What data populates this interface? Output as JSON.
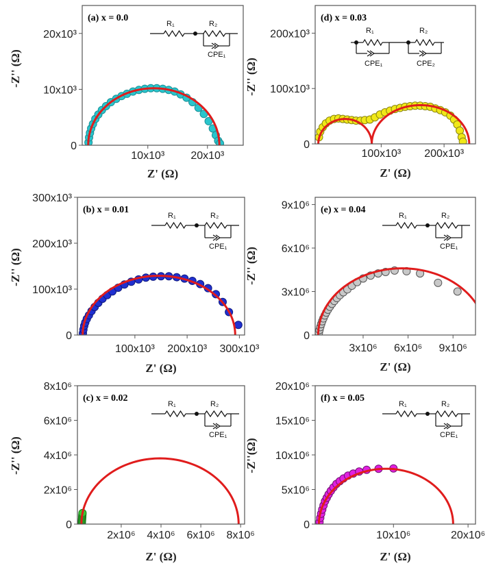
{
  "chart_data": [
    {
      "id": "a",
      "type": "scatter",
      "panel_label": "(a) x = 0.0",
      "xlabel": "Z' (Ω)",
      "ylabel": "-Z'' (Ω)",
      "xlim": [
        -1000,
        26000
      ],
      "ylim": [
        0,
        25000
      ],
      "xticks": [
        {
          "v": 10000,
          "label": "10x10³"
        },
        {
          "v": 20000,
          "label": "20x10³"
        }
      ],
      "yticks": [
        {
          "v": 0,
          "label": "0"
        },
        {
          "v": 10000,
          "label": "10x10³"
        },
        {
          "v": 20000,
          "label": "20x10³"
        }
      ],
      "circuit": {
        "r1": "R₁",
        "r2": "R₂",
        "cpe": [
          "CPE₁"
        ]
      },
      "series": [
        {
          "color": "#29c5cc",
          "edge": "#1a8f96",
          "fit_color": "#e01c1c",
          "arcs": [
            {
              "x0": 0,
              "x1": 22000,
              "h": 10200
            }
          ],
          "points": [
            [
              50,
              500
            ],
            [
              150,
              1400
            ],
            [
              300,
              2200
            ],
            [
              500,
              3000
            ],
            [
              800,
              3800
            ],
            [
              1200,
              4700
            ],
            [
              1700,
              5500
            ],
            [
              2300,
              6300
            ],
            [
              3000,
              7000
            ],
            [
              3800,
              7700
            ],
            [
              4700,
              8300
            ],
            [
              5600,
              8800
            ],
            [
              6500,
              9200
            ],
            [
              7500,
              9600
            ],
            [
              8500,
              9900
            ],
            [
              9500,
              10100
            ],
            [
              10500,
              10200
            ],
            [
              11500,
              10200
            ],
            [
              12500,
              10100
            ],
            [
              13500,
              9900
            ],
            [
              14500,
              9600
            ],
            [
              15500,
              9100
            ],
            [
              16500,
              8500
            ],
            [
              17500,
              7700
            ],
            [
              18500,
              6700
            ],
            [
              19400,
              5600
            ],
            [
              20200,
              4300
            ],
            [
              20900,
              3000
            ],
            [
              21400,
              1800
            ],
            [
              21800,
              800
            ],
            [
              22100,
              300
            ]
          ]
        }
      ]
    },
    {
      "id": "b",
      "type": "scatter",
      "panel_label": "(b) x = 0.01",
      "xlabel": "Z' (Ω)",
      "ylabel": "-Z'' (Ω)",
      "xlim": [
        -10000,
        310000
      ],
      "ylim": [
        0,
        300000
      ],
      "xticks": [
        {
          "v": 100000,
          "label": "100x10³"
        },
        {
          "v": 200000,
          "label": "200x10³"
        },
        {
          "v": 300000,
          "label": "300x10³"
        }
      ],
      "yticks": [
        {
          "v": 0,
          "label": "0"
        },
        {
          "v": 100000,
          "label": "100x10³"
        },
        {
          "v": 200000,
          "label": "200x10³"
        },
        {
          "v": 300000,
          "label": "300x10³"
        }
      ],
      "circuit": {
        "r1": "R₁",
        "r2": "R₂",
        "cpe": [
          "CPE₁"
        ]
      },
      "series": [
        {
          "color": "#2030d0",
          "edge": "#101a80",
          "fit_color": "#e01c1c",
          "arcs": [
            {
              "x0": 0,
              "x1": 292000,
              "h": 129000
            }
          ],
          "points": [
            [
              500,
              4000
            ],
            [
              1500,
              12000
            ],
            [
              3000,
              20000
            ],
            [
              5000,
              27000
            ],
            [
              8000,
              35000
            ],
            [
              12000,
              43000
            ],
            [
              17000,
              52000
            ],
            [
              23000,
              61000
            ],
            [
              30000,
              70000
            ],
            [
              38000,
              79000
            ],
            [
              47000,
              87000
            ],
            [
              57000,
              95000
            ],
            [
              68000,
              103000
            ],
            [
              80000,
              110000
            ],
            [
              93000,
              116000
            ],
            [
              107000,
              121000
            ],
            [
              121000,
              125000
            ],
            [
              135000,
              127000
            ],
            [
              150000,
              128000
            ],
            [
              165000,
              128000
            ],
            [
              180000,
              126000
            ],
            [
              195000,
              123000
            ],
            [
              210000,
              118000
            ],
            [
              225000,
              111000
            ],
            [
              240000,
              102000
            ],
            [
              255000,
              89000
            ],
            [
              268000,
              72000
            ],
            [
              280000,
              50000
            ],
            [
              298000,
              22000
            ]
          ]
        }
      ]
    },
    {
      "id": "c",
      "type": "scatter",
      "panel_label": "(c) x = 0.02",
      "xlabel": "Z' (Ω)",
      "ylabel": "-Z'' (Ω)",
      "xlim": [
        -200000,
        8200000
      ],
      "ylim": [
        0,
        8000000
      ],
      "xticks": [
        {
          "v": 2000000,
          "label": "2x10⁶"
        },
        {
          "v": 4000000,
          "label": "4x10⁶"
        },
        {
          "v": 6000000,
          "label": "6x10⁶"
        },
        {
          "v": 8000000,
          "label": "8x10⁶"
        }
      ],
      "yticks": [
        {
          "v": 0,
          "label": "0"
        },
        {
          "v": 2000000,
          "label": "2x10⁶"
        },
        {
          "v": 4000000,
          "label": "4x10⁶"
        },
        {
          "v": 6000000,
          "label": "6x10⁶"
        },
        {
          "v": 8000000,
          "label": "8x10⁶"
        }
      ],
      "circuit": {
        "r1": "R₁",
        "r2": "R₂",
        "cpe": [
          "CPE₁"
        ]
      },
      "series": [
        {
          "color": "#36c836",
          "edge": "#1a7a1a",
          "fit_color": "#e01c1c",
          "arcs": [
            {
              "x0": 0,
              "x1": 7900000,
              "h": 3800000
            }
          ],
          "points": [
            [
              20000,
              80000
            ],
            [
              25000,
              160000
            ],
            [
              30000,
              240000
            ],
            [
              35000,
              320000
            ],
            [
              40000,
              400000
            ],
            [
              45000,
              480000
            ],
            [
              50000,
              560000
            ],
            [
              55000,
              640000
            ]
          ]
        }
      ]
    },
    {
      "id": "d",
      "type": "scatter",
      "panel_label": "(d) x = 0.03",
      "xlabel": "Z' (Ω)",
      "ylabel": "-Z'' (Ω)",
      "xlim": [
        -5000,
        250000
      ],
      "ylim": [
        0,
        250000
      ],
      "xticks": [
        {
          "v": 100000,
          "label": "100x10³"
        },
        {
          "v": 200000,
          "label": "200x10³"
        }
      ],
      "yticks": [
        {
          "v": 0,
          "label": "0"
        },
        {
          "v": 100000,
          "label": "100x10³"
        },
        {
          "v": 200000,
          "label": "200x10³"
        }
      ],
      "circuit": {
        "r1": "R₁",
        "r2": "R₂",
        "cpe": [
          "CPE₁",
          "CPE₂"
        ]
      },
      "series": [
        {
          "color": "#f0e818",
          "edge": "#8a8410",
          "fit_color": "#e01c1c",
          "arcs": [
            {
              "x0": 0,
              "x1": 85000,
              "h": 45000
            },
            {
              "x0": 85000,
              "x1": 240000,
              "h": 70000
            }
          ],
          "points": [
            [
              1000,
              12000
            ],
            [
              3000,
              22000
            ],
            [
              7000,
              30000
            ],
            [
              12000,
              37000
            ],
            [
              18000,
              42000
            ],
            [
              25000,
              45000
            ],
            [
              32000,
              46000
            ],
            [
              39000,
              45000
            ],
            [
              46000,
              44000
            ],
            [
              53000,
              43000
            ],
            [
              60000,
              42000
            ],
            [
              67000,
              42000
            ],
            [
              74000,
              43000
            ],
            [
              82000,
              44000
            ],
            [
              90000,
              48000
            ],
            [
              98000,
              53000
            ],
            [
              106000,
              57000
            ],
            [
              114000,
              60000
            ],
            [
              122000,
              63000
            ],
            [
              130000,
              65000
            ],
            [
              138000,
              67000
            ],
            [
              146000,
              68000
            ],
            [
              154000,
              69000
            ],
            [
              162000,
              69000
            ],
            [
              170000,
              68000
            ],
            [
              178000,
              67000
            ],
            [
              186000,
              64000
            ],
            [
              194000,
              61000
            ],
            [
              202000,
              57000
            ],
            [
              210000,
              51000
            ],
            [
              216000,
              44000
            ],
            [
              221000,
              35000
            ],
            [
              225000,
              24000
            ],
            [
              228000,
              12000
            ],
            [
              230000,
              4000
            ]
          ]
        }
      ]
    },
    {
      "id": "e",
      "type": "scatter",
      "panel_label": "(e) x = 0.04",
      "xlabel": "Z' (Ω)",
      "ylabel": "-Z'' (Ω)",
      "xlim": [
        -200000,
        10500000
      ],
      "ylim": [
        0,
        9500000
      ],
      "xticks": [
        {
          "v": 3000000,
          "label": "3x10⁶"
        },
        {
          "v": 6000000,
          "label": "6x10⁶"
        },
        {
          "v": 9000000,
          "label": "9x10⁶"
        }
      ],
      "yticks": [
        {
          "v": 0,
          "label": "0"
        },
        {
          "v": 3000000,
          "label": "3x10⁶"
        },
        {
          "v": 6000000,
          "label": "6x10⁶"
        },
        {
          "v": 9000000,
          "label": "9x10⁶"
        }
      ],
      "circuit": {
        "r1": "R₁",
        "r2": "R₂",
        "cpe": [
          "CPE₁"
        ]
      },
      "series": [
        {
          "color": "#c8c8c8",
          "edge": "#555555",
          "fit_color": "#e01c1c",
          "arcs": [
            {
              "x0": 0,
              "x1": 11200000,
              "h": 4600000
            }
          ],
          "points": [
            [
              50000,
              150000
            ],
            [
              90000,
              350000
            ],
            [
              140000,
              550000
            ],
            [
              200000,
              750000
            ],
            [
              270000,
              950000
            ],
            [
              350000,
              1150000
            ],
            [
              440000,
              1350000
            ],
            [
              540000,
              1550000
            ],
            [
              650000,
              1750000
            ],
            [
              780000,
              1950000
            ],
            [
              920000,
              2150000
            ],
            [
              1080000,
              2350000
            ],
            [
              1250000,
              2550000
            ],
            [
              1450000,
              2750000
            ],
            [
              1680000,
              2950000
            ],
            [
              1950000,
              3150000
            ],
            [
              2250000,
              3400000
            ],
            [
              2600000,
              3650000
            ],
            [
              3000000,
              3900000
            ],
            [
              3500000,
              4100000
            ],
            [
              4000000,
              4250000
            ],
            [
              4500000,
              4350000
            ],
            [
              5100000,
              4450000
            ],
            [
              5900000,
              4400000
            ],
            [
              6800000,
              4250000
            ],
            [
              8000000,
              3600000
            ],
            [
              9300000,
              3000000
            ]
          ]
        }
      ]
    },
    {
      "id": "f",
      "type": "scatter",
      "panel_label": "(f) x = 0.05",
      "xlabel": "Z' (Ω)",
      "ylabel": "-Z''(Ω)",
      "xlim": [
        -500000,
        21000000
      ],
      "ylim": [
        0,
        20000000
      ],
      "xticks": [
        {
          "v": 10000000,
          "label": "10x10⁶"
        },
        {
          "v": 20000000,
          "label": "20x10⁶"
        }
      ],
      "yticks": [
        {
          "v": 0,
          "label": "0"
        },
        {
          "v": 5000000,
          "label": "5x10⁶"
        },
        {
          "v": 10000000,
          "label": "10x10⁶"
        },
        {
          "v": 15000000,
          "label": "15x10⁶"
        },
        {
          "v": 20000000,
          "label": "20x10⁶"
        }
      ],
      "circuit": {
        "r1": "R₁",
        "r2": "R₂",
        "cpe": [
          "CPE₁"
        ]
      },
      "series": [
        {
          "color": "#e020e0",
          "edge": "#701070",
          "fit_color": "#e01c1c",
          "arcs": [
            {
              "x0": 0,
              "x1": 18000000,
              "h": 8000000
            }
          ],
          "points": [
            [
              80000,
              300000
            ],
            [
              180000,
              900000
            ],
            [
              300000,
              1500000
            ],
            [
              450000,
              2100000
            ],
            [
              620000,
              2700000
            ],
            [
              820000,
              3300000
            ],
            [
              1050000,
              3800000
            ],
            [
              1300000,
              4300000
            ],
            [
              1600000,
              4800000
            ],
            [
              1950000,
              5300000
            ],
            [
              2350000,
              5800000
            ],
            [
              2800000,
              6200000
            ],
            [
              3300000,
              6600000
            ],
            [
              3900000,
              7000000
            ],
            [
              4600000,
              7300000
            ],
            [
              5400000,
              7600000
            ],
            [
              6400000,
              7850000
            ],
            [
              8000000,
              8000000
            ],
            [
              10000000,
              8050000
            ]
          ]
        }
      ]
    }
  ]
}
